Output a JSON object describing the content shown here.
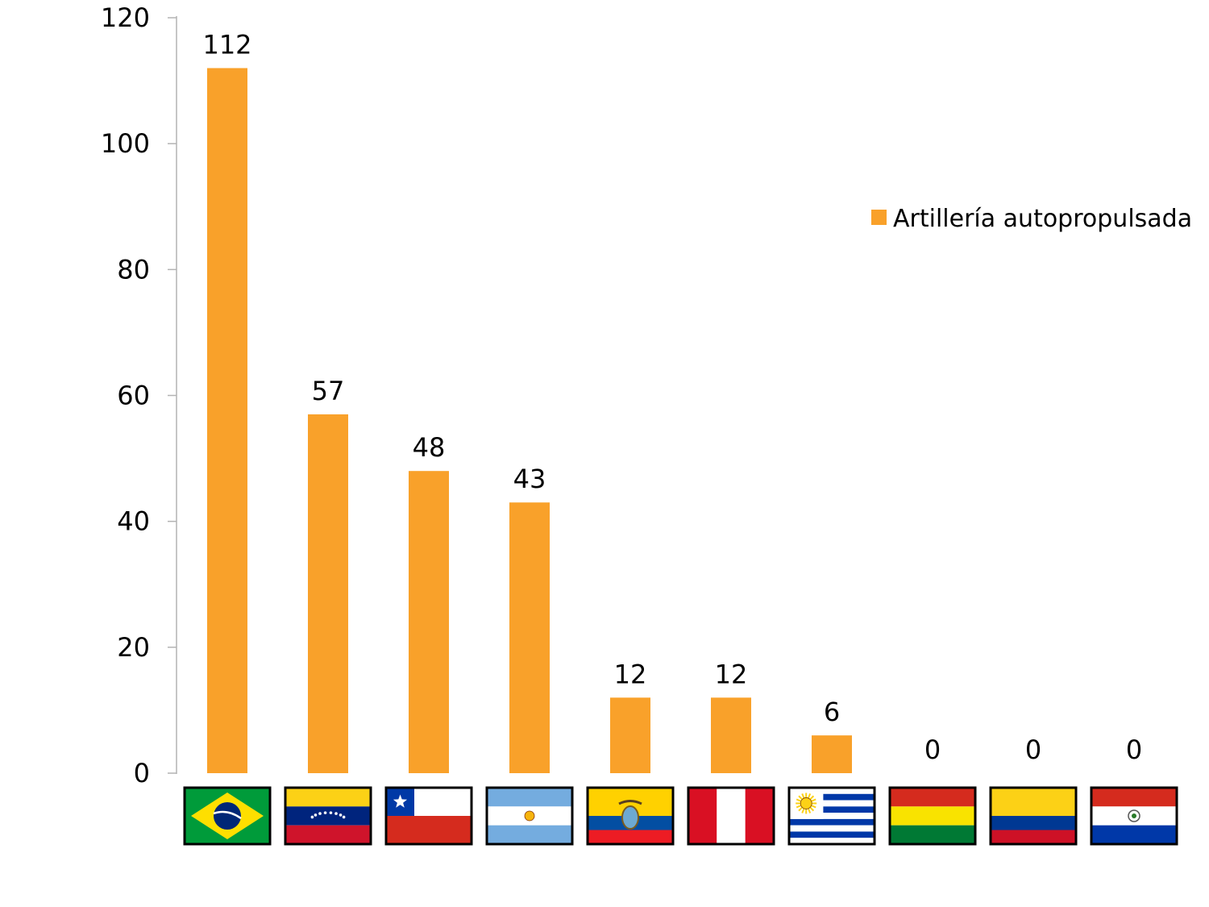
{
  "chart_data": {
    "type": "bar",
    "categories": [
      "Brasil",
      "Venezuela",
      "Chile",
      "Argentina",
      "Ecuador",
      "Perú",
      "Uruguay",
      "Bolivia",
      "Colombia",
      "Paraguay"
    ],
    "category_icons": [
      "flag-brazil",
      "flag-venezuela",
      "flag-chile",
      "flag-argentina",
      "flag-ecuador",
      "flag-peru",
      "flag-uruguay",
      "flag-bolivia",
      "flag-colombia",
      "flag-paraguay"
    ],
    "series": [
      {
        "name": "Artillería autopropulsada",
        "values": [
          112,
          57,
          48,
          43,
          12,
          12,
          6,
          0,
          0,
          0
        ],
        "color": "#F9A12A"
      }
    ],
    "y_ticks": [
      "0",
      "20",
      "40",
      "60",
      "80",
      "100",
      "120"
    ],
    "ylim": [
      0,
      120
    ],
    "grid": false,
    "legend_position": "right",
    "title": "",
    "xlabel": "",
    "ylabel": ""
  }
}
